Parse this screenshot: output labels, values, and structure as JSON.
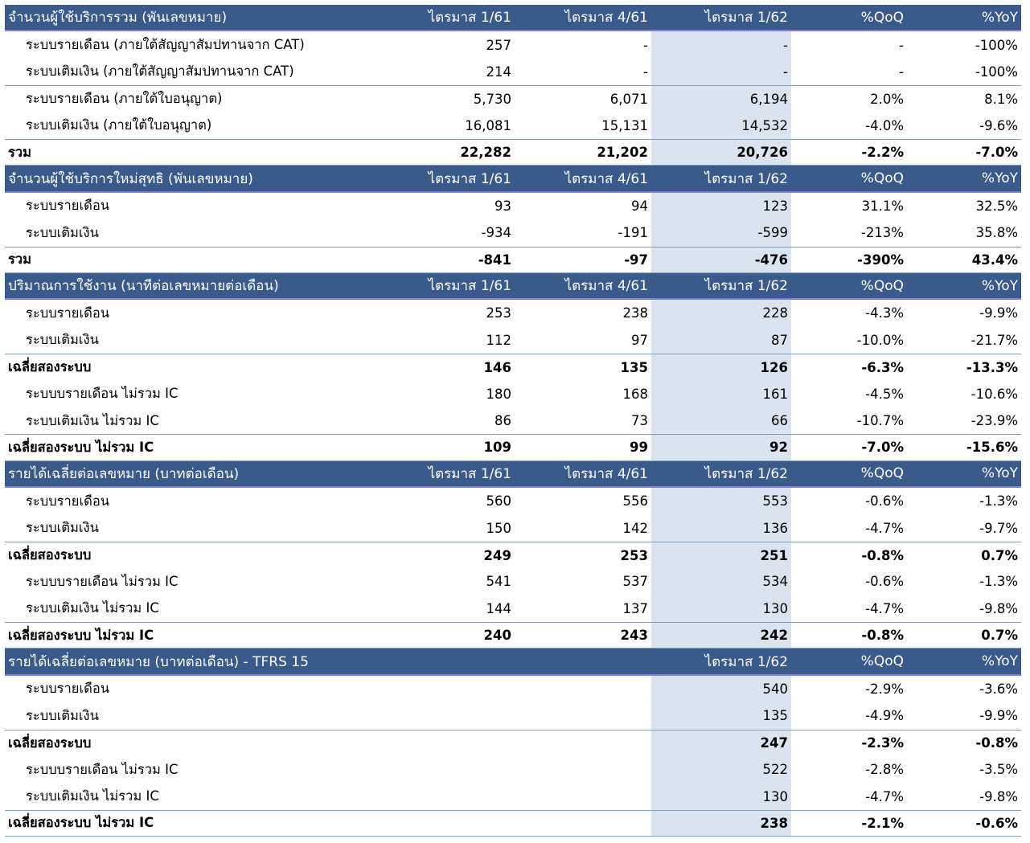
{
  "sections": [
    {
      "header": [
        "จำนวนผู้ใช้บริการรวม (พันเลขหมาย)",
        "ไตรมาส 1/61",
        "ไตรมาส 4/61",
        "ไตรมาส 1/62",
        "%QoQ",
        "%YoY"
      ],
      "rows": [
        {
          "kind": "item",
          "cells": [
            "ระบบรายเดือน (ภายใต้สัญญาสัมปทานจาก CAT)",
            "257",
            "-",
            "-",
            "-",
            "-100%"
          ]
        },
        {
          "kind": "item",
          "cells": [
            "ระบบเติมเงิน (ภายใต้สัญญาสัมปทานจาก CAT)",
            "214",
            "-",
            "-",
            "-",
            "-100%"
          ]
        },
        {
          "kind": "item-div",
          "cells": [
            "ระบบรายเดือน (ภายใต้ใบอนุญาต)",
            "5,730",
            "6,071",
            "6,194",
            "2.0%",
            "8.1%"
          ]
        },
        {
          "kind": "item",
          "cells": [
            "ระบบเติมเงิน (ภายใต้ใบอนุญาต)",
            "16,081",
            "15,131",
            "14,532",
            "-4.0%",
            "-9.6%"
          ]
        },
        {
          "kind": "tot",
          "cells": [
            "รวม",
            "22,282",
            "21,202",
            "20,726",
            "-2.2%",
            "-7.0%"
          ]
        }
      ]
    },
    {
      "header": [
        "จำนวนผู้ใช้บริการใหม่สุทธิ (พันเลขหมาย)",
        "ไตรมาส 1/61",
        "ไตรมาส 4/61",
        "ไตรมาส 1/62",
        "%QoQ",
        "%YoY"
      ],
      "rows": [
        {
          "kind": "item",
          "cells": [
            "ระบบรายเดือน",
            "93",
            "94",
            "123",
            "31.1%",
            "32.5%"
          ]
        },
        {
          "kind": "item",
          "cells": [
            "ระบบเติมเงิน",
            "-934",
            "-191",
            "-599",
            "-213%",
            "35.8%"
          ]
        },
        {
          "kind": "tot",
          "cells": [
            "รวม",
            "-841",
            "-97",
            "-476",
            "-390%",
            "43.4%"
          ]
        }
      ]
    },
    {
      "header": [
        "ปริมาณการใช้งาน (นาทีต่อเลขหมายต่อเดือน)",
        "ไตรมาส 1/61",
        "ไตรมาส 4/61",
        "ไตรมาส 1/62",
        "%QoQ",
        "%YoY"
      ],
      "rows": [
        {
          "kind": "item",
          "cells": [
            "ระบบรายเดือน",
            "253",
            "238",
            "228",
            "-4.3%",
            "-9.9%"
          ]
        },
        {
          "kind": "item",
          "cells": [
            "ระบบเติมเงิน",
            "112",
            "97",
            "87",
            "-10.0%",
            "-21.7%"
          ]
        },
        {
          "kind": "sub",
          "cells": [
            "เฉลี่ยสองระบบ",
            "146",
            "135",
            "126",
            "-6.3%",
            "-13.3%"
          ]
        },
        {
          "kind": "item",
          "cells": [
            "ระบบบรายเดือน ไม่รวม IC",
            "180",
            "168",
            "161",
            "-4.5%",
            "-10.6%"
          ]
        },
        {
          "kind": "item",
          "cells": [
            "ระบบเติมเงิน ไม่รวม IC",
            "86",
            "73",
            "66",
            "-10.7%",
            "-23.9%"
          ]
        },
        {
          "kind": "tot",
          "cells": [
            "เฉลี่ยสองระบบ ไม่รวม IC",
            "109",
            "99",
            "92",
            "-7.0%",
            "-15.6%"
          ]
        }
      ]
    },
    {
      "header": [
        "รายได้เฉลี่ยต่อเลขหมาย (บาทต่อเดือน)",
        "ไตรมาส 1/61",
        "ไตรมาส 4/61",
        "ไตรมาส 1/62",
        "%QoQ",
        "%YoY"
      ],
      "rows": [
        {
          "kind": "item",
          "cells": [
            "ระบบรายเดือน",
            "560",
            "556",
            "553",
            "-0.6%",
            "-1.3%"
          ]
        },
        {
          "kind": "item",
          "cells": [
            "ระบบเติมเงิน",
            "150",
            "142",
            "136",
            "-4.7%",
            "-9.7%"
          ]
        },
        {
          "kind": "sub",
          "cells": [
            "เฉลี่ยสองระบบ",
            "249",
            "253",
            "251",
            "-0.8%",
            "0.7%"
          ]
        },
        {
          "kind": "item",
          "cells": [
            "ระบบบรายเดือน ไม่รวม IC",
            "541",
            "537",
            "534",
            "-0.6%",
            "-1.3%"
          ]
        },
        {
          "kind": "item",
          "cells": [
            "ระบบเติมเงิน ไม่รวม IC",
            "144",
            "137",
            "130",
            "-4.7%",
            "-9.8%"
          ]
        },
        {
          "kind": "tot",
          "cells": [
            "เฉลี่ยสองระบบ ไม่รวม IC",
            "240",
            "243",
            "242",
            "-0.8%",
            "0.7%"
          ]
        }
      ]
    },
    {
      "header": [
        "รายได้เฉลี่ยต่อเลขหมาย (บาทต่อเดือน) - TFRS 15",
        "",
        "",
        "ไตรมาส 1/62",
        "%QoQ",
        "%YoY"
      ],
      "rows": [
        {
          "kind": "item",
          "cells": [
            "ระบบรายเดือน",
            "",
            "",
            "540",
            "-2.9%",
            "-3.6%"
          ]
        },
        {
          "kind": "item",
          "cells": [
            "ระบบเติมเงิน",
            "",
            "",
            "135",
            "-4.9%",
            "-9.9%"
          ]
        },
        {
          "kind": "sub",
          "cells": [
            "เฉลี่ยสองระบบ",
            "",
            "",
            "247",
            "-2.3%",
            "-0.8%"
          ]
        },
        {
          "kind": "item",
          "cells": [
            "ระบบบรายเดือน ไม่รวม IC",
            "",
            "",
            "522",
            "-2.8%",
            "-3.5%"
          ]
        },
        {
          "kind": "item",
          "cells": [
            "ระบบเติมเงิน ไม่รวม IC",
            "",
            "",
            "130",
            "-4.7%",
            "-9.8%"
          ]
        },
        {
          "kind": "tot",
          "cells": [
            "เฉลี่ยสองระบบ ไม่รวม IC",
            "",
            "",
            "238",
            "-2.1%",
            "-0.6%"
          ]
        }
      ]
    }
  ]
}
